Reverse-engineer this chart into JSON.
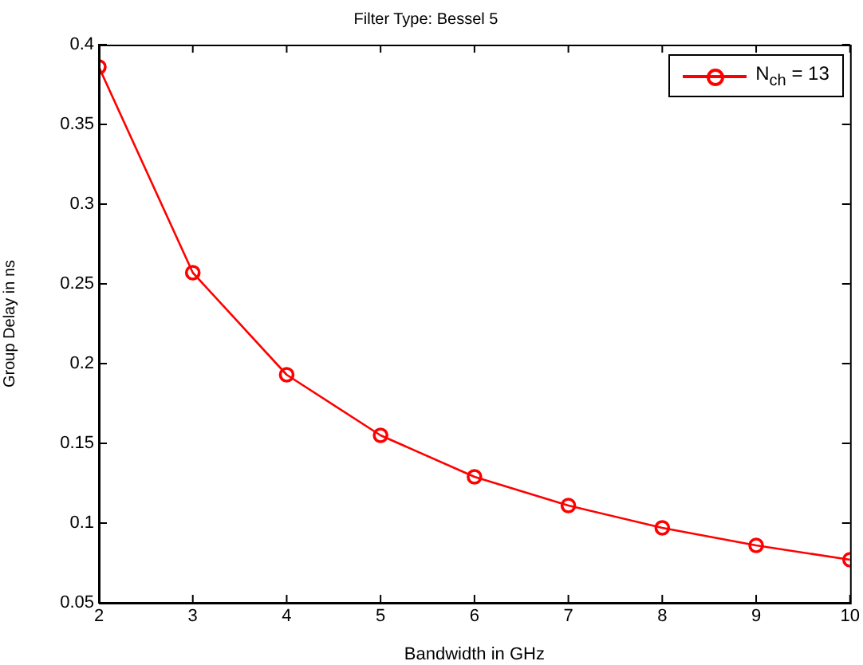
{
  "chart_data": {
    "type": "line",
    "title": "Filter Type: Bessel 5",
    "xlabel": "Bandwidth in GHz",
    "ylabel": "Group Delay in ns",
    "x": [
      2,
      3,
      4,
      5,
      6,
      7,
      8,
      9,
      10
    ],
    "series": [
      {
        "name": "N$_{ch}$ = 13",
        "color": "#ff0000",
        "values": [
          0.386,
          0.257,
          0.193,
          0.155,
          0.129,
          0.111,
          0.097,
          0.086,
          0.077
        ]
      }
    ],
    "xlim": [
      2,
      10
    ],
    "xticks": [
      2,
      3,
      4,
      5,
      6,
      7,
      8,
      9,
      10
    ],
    "ylim": [
      0.05,
      0.4
    ],
    "yticks": [
      0.05,
      0.1,
      0.15,
      0.2,
      0.25,
      0.3,
      0.35,
      0.4
    ],
    "legend": "top right",
    "marker": "circle",
    "line_style": "solid"
  }
}
